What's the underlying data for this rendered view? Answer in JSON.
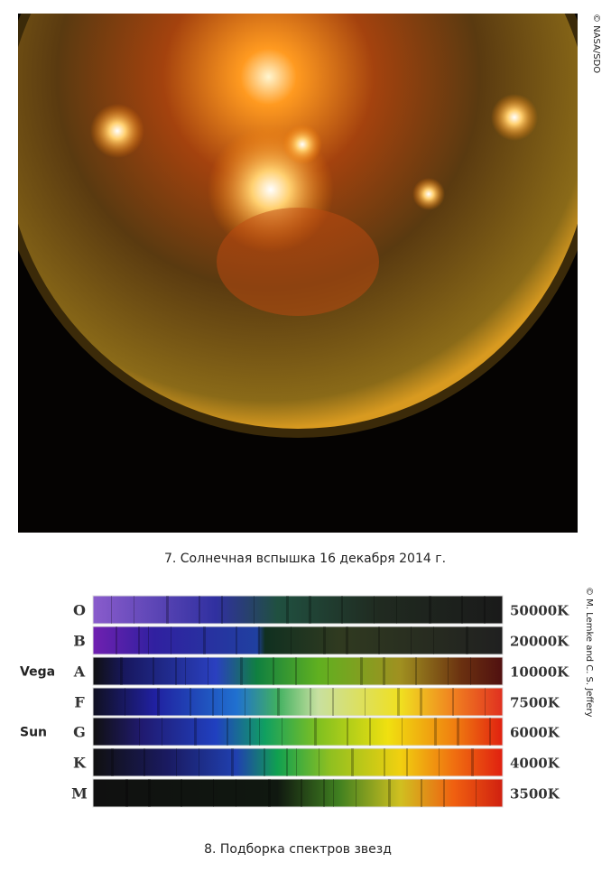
{
  "figure_1": {
    "credit": "© NASA/SDO",
    "caption": "7. Солнечная вспышка 16 декабря 2014 г."
  },
  "figure_2": {
    "credit": "© M. Lemke and C. S. Jeffery",
    "caption": "8. Подборка спектров звезд",
    "rows": [
      {
        "class": "O",
        "temperature": "50000K"
      },
      {
        "class": "B",
        "temperature": "20000K"
      },
      {
        "class": "A",
        "temperature": "10000K",
        "star": "Vega"
      },
      {
        "class": "F",
        "temperature": "7500K"
      },
      {
        "class": "G",
        "temperature": "6000K",
        "star": "Sun"
      },
      {
        "class": "K",
        "temperature": "4000K"
      },
      {
        "class": "M",
        "temperature": "3500K"
      }
    ]
  }
}
